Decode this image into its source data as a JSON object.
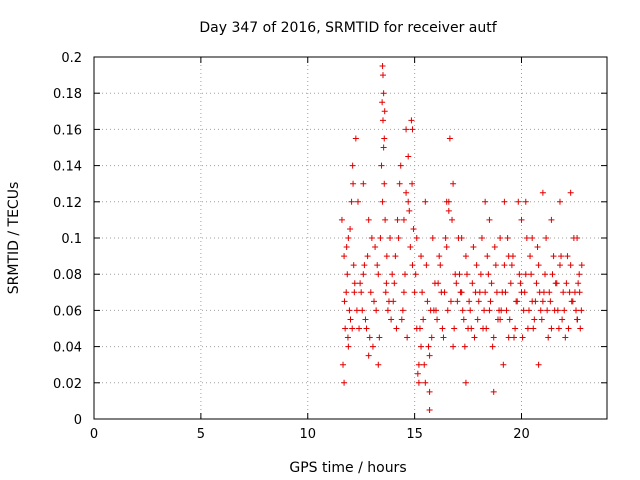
{
  "chart_data": {
    "type": "scatter",
    "title": "Day 347 of 2016, SRMTID for receiver autf",
    "xlabel": "GPS time / hours",
    "ylabel": "SRMTID / TECUs",
    "xlim": [
      0,
      24
    ],
    "ylim": [
      0,
      0.2
    ],
    "x_ticks": [
      "0",
      "5",
      "10",
      "15",
      "20"
    ],
    "x_tick_values": [
      0,
      5,
      10,
      15,
      20
    ],
    "y_ticks": [
      "0",
      "0.02",
      "0.04",
      "0.06",
      "0.08",
      "0.1",
      "0.12",
      "0.14",
      "0.16",
      "0.18",
      "0.2"
    ],
    "y_tick_values": [
      0,
      0.02,
      0.04,
      0.06,
      0.08,
      0.1,
      0.12,
      0.14,
      0.16,
      0.18,
      0.2
    ],
    "grid": true,
    "marker": "+",
    "color": "#e00000",
    "series": [
      {
        "name": "SRMTID",
        "x": [
          11.6,
          11.7,
          11.75,
          11.8,
          11.85,
          11.9,
          11.95,
          12.0,
          12.05,
          12.1,
          12.15,
          12.2,
          11.65,
          11.72,
          11.82,
          11.88,
          11.98,
          12.08,
          12.12,
          12.18,
          12.3,
          12.4,
          12.5,
          12.6,
          12.7,
          12.8,
          12.9,
          13.0,
          13.1,
          12.35,
          12.45,
          12.55,
          12.65,
          12.75,
          12.85,
          12.95,
          13.05,
          13.15,
          12.25,
          12.85,
          13.2,
          13.3,
          13.4,
          13.5,
          13.55,
          13.6,
          13.65,
          13.7,
          13.8,
          13.9,
          13.25,
          13.35,
          13.45,
          13.52,
          13.58,
          13.62,
          13.68,
          13.75,
          13.85,
          13.95,
          14.0,
          14.1,
          14.2,
          14.3,
          14.4,
          14.5,
          14.6,
          14.7,
          14.8,
          14.9,
          14.05,
          14.15,
          14.25,
          14.35,
          14.45,
          14.55,
          14.65,
          14.75,
          14.85,
          14.95,
          15.0,
          15.1,
          15.2,
          15.3,
          15.4,
          15.5,
          15.6,
          15.7,
          15.8,
          15.9,
          15.05,
          15.15,
          15.25,
          15.35,
          15.45,
          15.55,
          15.65,
          15.75,
          15.85,
          15.95,
          16.0,
          16.1,
          16.2,
          16.3,
          16.4,
          16.5,
          16.6,
          16.7,
          16.8,
          16.9,
          16.05,
          16.15,
          16.25,
          16.35,
          16.45,
          16.55,
          16.65,
          16.75,
          16.85,
          16.95,
          17.0,
          17.1,
          17.2,
          17.3,
          17.4,
          17.5,
          17.6,
          17.7,
          17.8,
          17.9,
          17.05,
          17.15,
          17.25,
          17.35,
          17.45,
          17.55,
          17.65,
          17.75,
          17.85,
          17.95,
          18.0,
          18.1,
          18.2,
          18.3,
          18.4,
          18.5,
          18.6,
          18.7,
          18.8,
          18.9,
          18.05,
          18.15,
          18.25,
          18.35,
          18.45,
          18.55,
          18.65,
          18.75,
          18.85,
          18.95,
          19.0,
          19.1,
          19.2,
          19.3,
          19.4,
          19.5,
          19.6,
          19.7,
          19.8,
          19.9,
          19.05,
          19.15,
          19.25,
          19.35,
          19.45,
          19.55,
          19.65,
          19.75,
          19.85,
          19.95,
          20.0,
          20.1,
          20.2,
          20.3,
          20.4,
          20.5,
          20.6,
          20.7,
          20.8,
          20.9,
          20.05,
          20.15,
          20.25,
          20.35,
          20.45,
          20.55,
          20.65,
          20.75,
          20.85,
          20.95,
          21.0,
          21.1,
          21.2,
          21.3,
          21.4,
          21.5,
          21.6,
          21.7,
          21.8,
          21.9,
          21.05,
          21.15,
          21.25,
          21.35,
          21.45,
          21.55,
          21.65,
          21.75,
          21.85,
          21.95,
          22.0,
          22.1,
          22.2,
          22.3,
          22.4,
          22.5,
          22.6,
          22.7,
          22.8,
          22.05,
          22.15,
          22.25,
          22.35,
          22.45,
          22.55,
          22.65,
          22.75,
          22.82,
          22.72,
          22.62,
          13.5,
          13.55,
          13.52,
          13.58,
          13.48,
          14.6,
          14.7,
          14.5,
          14.9,
          14.88,
          15.1,
          15.3,
          15.5,
          15.7,
          16.6,
          16.8,
          17.2,
          18.3,
          18.5,
          19.0,
          19.2,
          19.4,
          20.0,
          20.2,
          20.5,
          21.0,
          21.4,
          21.8,
          22.3,
          22.6,
          11.7,
          11.9,
          12.6,
          13.3,
          15.2,
          15.7,
          16.5,
          17.4,
          18.7,
          20.8
        ],
        "y": [
          0.11,
          0.09,
          0.05,
          0.07,
          0.08,
          0.1,
          0.06,
          0.055,
          0.12,
          0.14,
          0.085,
          0.075,
          0.03,
          0.065,
          0.095,
          0.045,
          0.105,
          0.05,
          0.13,
          0.07,
          0.06,
          0.05,
          0.07,
          0.08,
          0.055,
          0.09,
          0.045,
          0.1,
          0.065,
          0.12,
          0.075,
          0.06,
          0.085,
          0.05,
          0.11,
          0.07,
          0.04,
          0.095,
          0.155,
          0.035,
          0.06,
          0.08,
          0.1,
          0.12,
          0.15,
          0.17,
          0.07,
          0.09,
          0.065,
          0.055,
          0.085,
          0.045,
          0.14,
          0.19,
          0.13,
          0.11,
          0.075,
          0.06,
          0.1,
          0.08,
          0.065,
          0.09,
          0.11,
          0.13,
          0.055,
          0.07,
          0.16,
          0.12,
          0.095,
          0.085,
          0.075,
          0.05,
          0.1,
          0.14,
          0.06,
          0.08,
          0.045,
          0.115,
          0.165,
          0.105,
          0.07,
          0.05,
          0.03,
          0.04,
          0.055,
          0.02,
          0.065,
          0.035,
          0.045,
          0.06,
          0.08,
          0.025,
          0.05,
          0.07,
          0.03,
          0.085,
          0.04,
          0.06,
          0.1,
          0.075,
          0.06,
          0.075,
          0.085,
          0.05,
          0.07,
          0.095,
          0.12,
          0.065,
          0.04,
          0.08,
          0.055,
          0.09,
          0.07,
          0.045,
          0.1,
          0.06,
          0.155,
          0.11,
          0.05,
          0.075,
          0.065,
          0.08,
          0.07,
          0.055,
          0.09,
          0.05,
          0.06,
          0.075,
          0.045,
          0.085,
          0.1,
          0.07,
          0.06,
          0.04,
          0.08,
          0.065,
          0.05,
          0.095,
          0.07,
          0.055,
          0.065,
          0.08,
          0.05,
          0.07,
          0.09,
          0.06,
          0.075,
          0.045,
          0.085,
          0.055,
          0.07,
          0.1,
          0.06,
          0.05,
          0.08,
          0.065,
          0.04,
          0.095,
          0.07,
          0.06,
          0.055,
          0.07,
          0.085,
          0.06,
          0.045,
          0.075,
          0.09,
          0.05,
          0.065,
          0.08,
          0.06,
          0.03,
          0.07,
          0.1,
          0.055,
          0.085,
          0.045,
          0.065,
          0.12,
          0.075,
          0.07,
          0.06,
          0.08,
          0.05,
          0.09,
          0.065,
          0.055,
          0.075,
          0.085,
          0.06,
          0.045,
          0.07,
          0.1,
          0.06,
          0.08,
          0.05,
          0.065,
          0.095,
          0.07,
          0.055,
          0.065,
          0.08,
          0.06,
          0.07,
          0.05,
          0.09,
          0.075,
          0.06,
          0.085,
          0.055,
          0.07,
          0.1,
          0.045,
          0.065,
          0.08,
          0.06,
          0.075,
          0.05,
          0.09,
          0.07,
          0.06,
          0.075,
          0.05,
          0.085,
          0.065,
          0.07,
          0.055,
          0.08,
          0.06,
          0.045,
          0.09,
          0.07,
          0.065,
          0.1,
          0.06,
          0.075,
          0.05,
          0.085,
          0.07,
          0.055,
          0.195,
          0.18,
          0.165,
          0.155,
          0.175,
          0.125,
          0.145,
          0.11,
          0.16,
          0.13,
          0.1,
          0.09,
          0.12,
          0.015,
          0.115,
          0.13,
          0.1,
          0.12,
          0.11,
          0.1,
          0.12,
          0.09,
          0.11,
          0.12,
          0.1,
          0.125,
          0.11,
          0.12,
          0.125,
          0.1,
          0.02,
          0.04,
          0.13,
          0.03,
          0.02,
          0.005,
          0.12,
          0.02,
          0.015,
          0.03
        ]
      }
    ]
  }
}
